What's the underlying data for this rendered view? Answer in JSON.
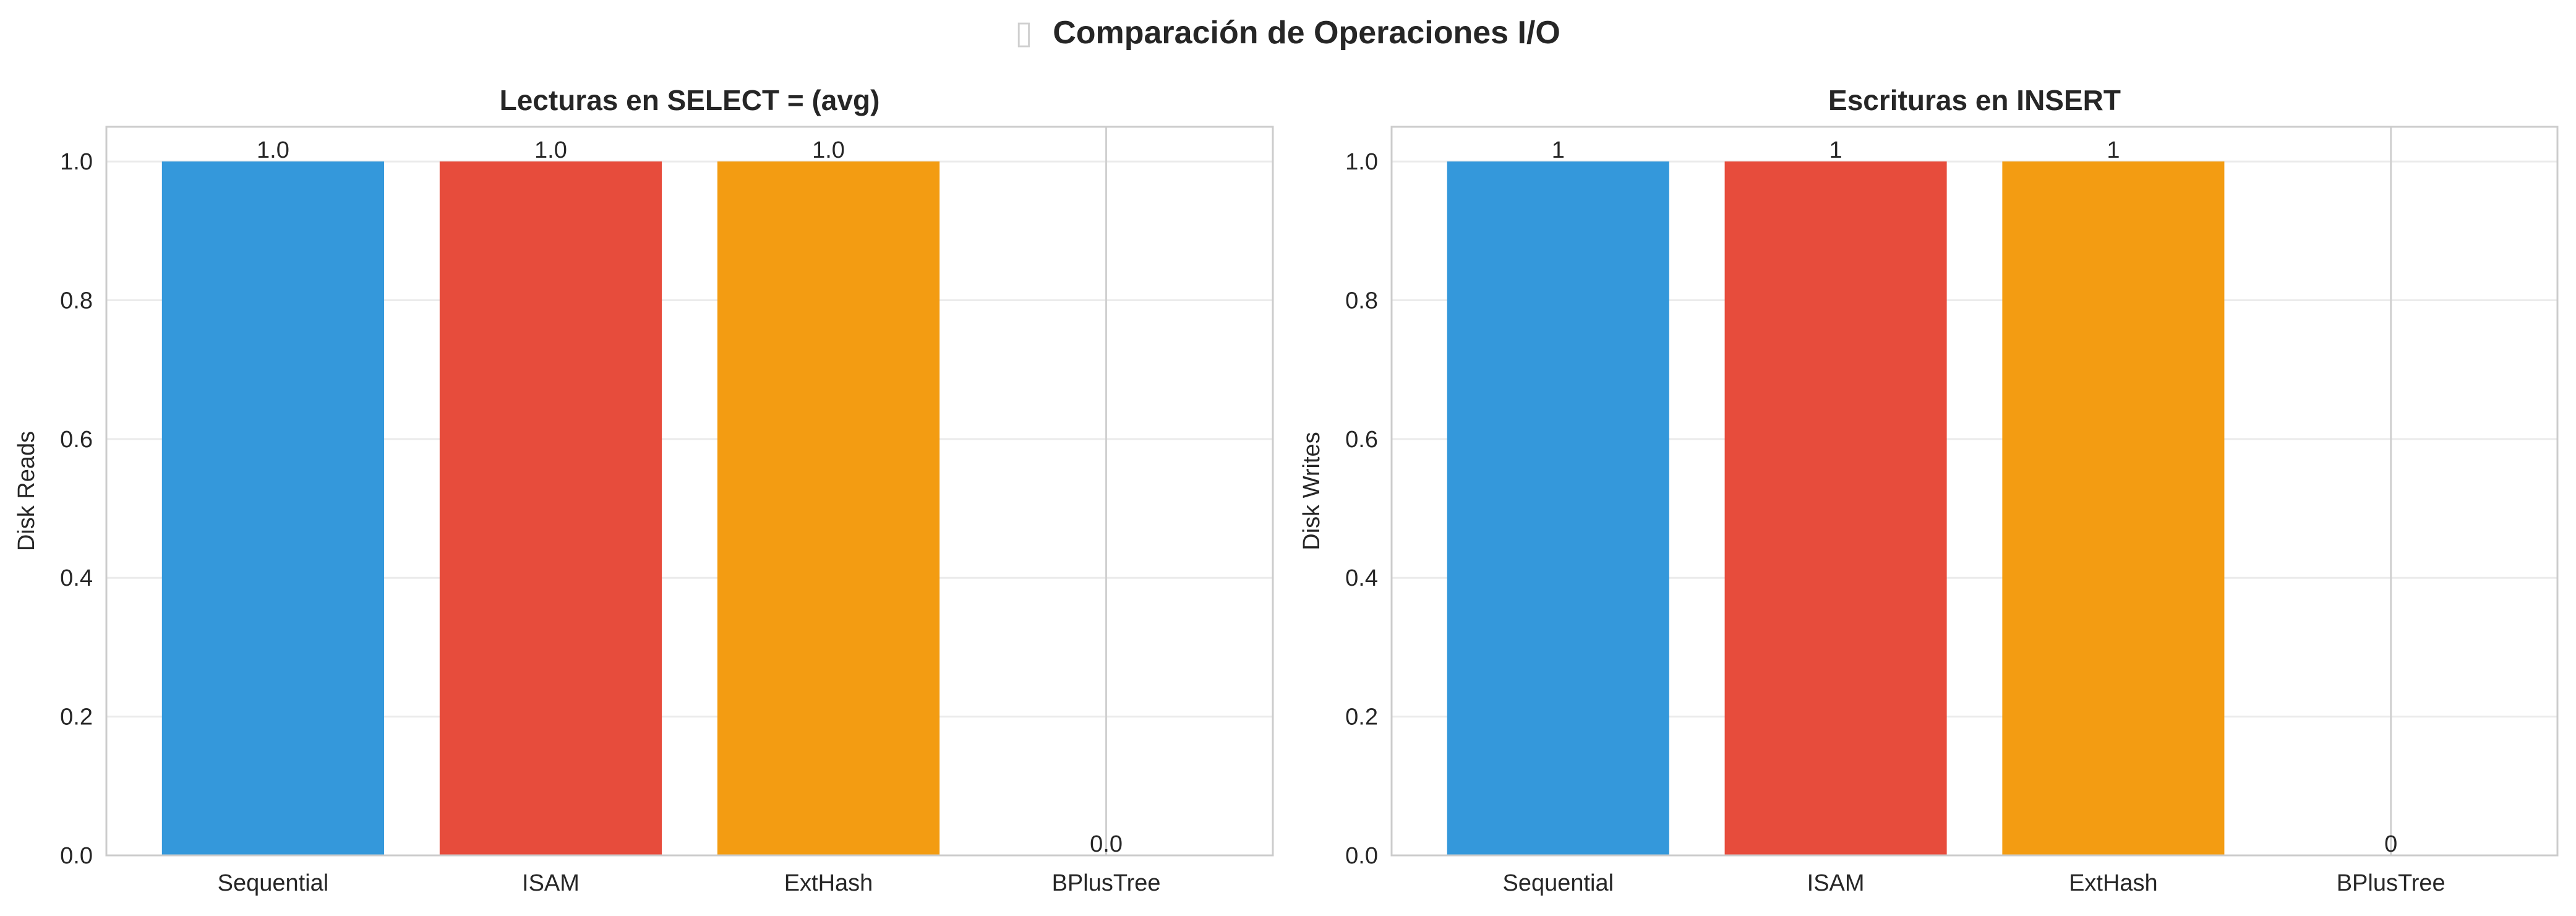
{
  "figure": {
    "title": "Comparación de Operaciones I/O",
    "title_icon": "missing-glyph-icon"
  },
  "chart_data": [
    {
      "type": "bar",
      "title": "Lecturas en SELECT = (avg)",
      "xlabel": "",
      "ylabel": "Disk Reads",
      "categories": [
        "Sequential",
        "ISAM",
        "ExtHash",
        "BPlusTree"
      ],
      "values": [
        1.0,
        1.0,
        1.0,
        0.0
      ],
      "value_labels": [
        "1.0",
        "1.0",
        "1.0",
        "0.0"
      ],
      "colors": [
        "#3498db",
        "#e74c3c",
        "#f39c12",
        "#2ecc71"
      ],
      "ylim": [
        0,
        1.05
      ],
      "yticks": [
        0.0,
        0.2,
        0.4,
        0.6,
        0.8,
        1.0
      ],
      "ytick_labels": [
        "0.0",
        "0.2",
        "0.4",
        "0.6",
        "0.8",
        "1.0"
      ],
      "grid": true,
      "legend": "none"
    },
    {
      "type": "bar",
      "title": "Escrituras en INSERT",
      "xlabel": "",
      "ylabel": "Disk Writes",
      "categories": [
        "Sequential",
        "ISAM",
        "ExtHash",
        "BPlusTree"
      ],
      "values": [
        1,
        1,
        1,
        0
      ],
      "value_labels": [
        "1",
        "1",
        "1",
        "0"
      ],
      "colors": [
        "#3498db",
        "#e74c3c",
        "#f39c12",
        "#2ecc71"
      ],
      "ylim": [
        0,
        1.05
      ],
      "yticks": [
        0.0,
        0.2,
        0.4,
        0.6,
        0.8,
        1.0
      ],
      "ytick_labels": [
        "0.0",
        "0.2",
        "0.4",
        "0.6",
        "0.8",
        "1.0"
      ],
      "grid": true,
      "legend": "none"
    }
  ]
}
